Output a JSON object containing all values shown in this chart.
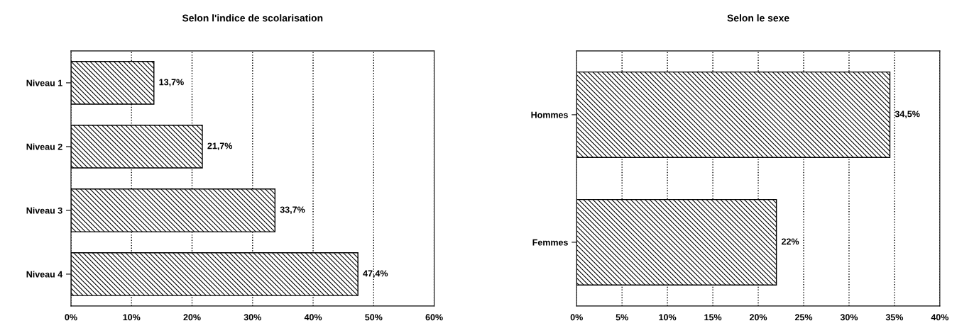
{
  "chart_data": [
    {
      "type": "bar",
      "orientation": "horizontal",
      "title": "Selon l'indice de scolarisation",
      "categories": [
        "Niveau 1",
        "Niveau 2",
        "Niveau 3",
        "Niveau 4"
      ],
      "series": [
        {
          "color": "#000000",
          "values": [
            13.7,
            21.7,
            33.7,
            47.4
          ],
          "value_labels": [
            "13,7%",
            "21,7%",
            "33,7%",
            "47,4%"
          ]
        }
      ],
      "xlim": [
        0,
        60
      ],
      "xticks": [
        {
          "value": 0,
          "label": "0%"
        },
        {
          "value": 10,
          "label": "10%"
        },
        {
          "value": 20,
          "label": "20%"
        },
        {
          "value": 30,
          "label": "30%"
        },
        {
          "value": 40,
          "label": "40%"
        },
        {
          "value": 50,
          "label": "50%"
        },
        {
          "value": 60,
          "label": "60%"
        }
      ],
      "grid": "x",
      "legend": false
    },
    {
      "type": "bar",
      "orientation": "horizontal",
      "title": "Selon le sexe",
      "categories": [
        "Hommes",
        "Femmes"
      ],
      "series": [
        {
          "color": "#000000",
          "values": [
            34.5,
            22
          ],
          "value_labels": [
            "34,5%",
            "22%"
          ]
        }
      ],
      "xlim": [
        0,
        40
      ],
      "xticks": [
        {
          "value": 0,
          "label": "0%"
        },
        {
          "value": 5,
          "label": "5%"
        },
        {
          "value": 10,
          "label": "10%"
        },
        {
          "value": 15,
          "label": "15%"
        },
        {
          "value": 20,
          "label": "20%"
        },
        {
          "value": 25,
          "label": "25%"
        },
        {
          "value": 30,
          "label": "30%"
        },
        {
          "value": 35,
          "label": "35%"
        },
        {
          "value": 40,
          "label": "40%"
        }
      ],
      "grid": "x",
      "legend": false
    }
  ]
}
